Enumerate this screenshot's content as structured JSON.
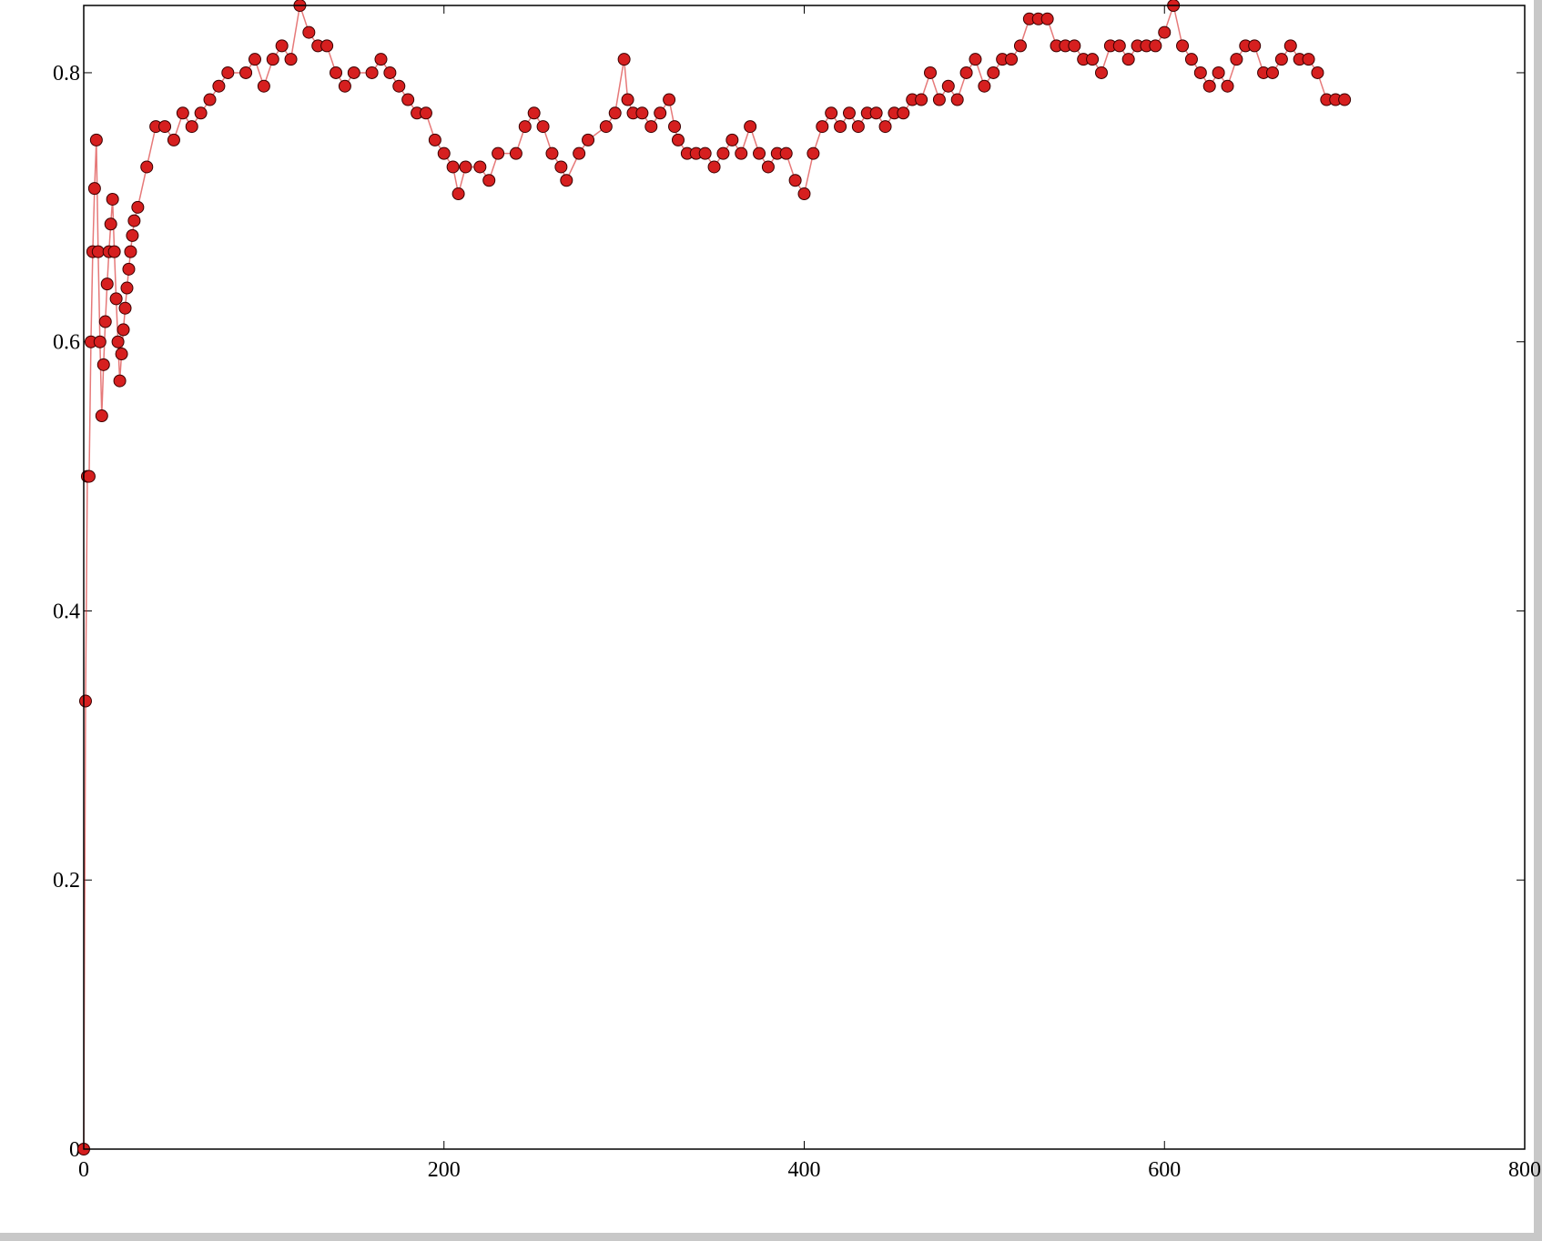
{
  "chart_data": {
    "type": "line",
    "x": [
      0,
      1,
      2,
      3,
      4,
      5,
      6,
      7,
      8,
      9,
      10,
      11,
      12,
      13,
      14,
      15,
      16,
      17,
      18,
      19,
      20,
      21,
      22,
      23,
      24,
      25,
      26,
      27,
      28,
      30,
      35,
      40,
      45,
      50,
      55,
      60,
      65,
      70,
      75,
      80,
      90,
      95,
      100,
      105,
      110,
      115,
      120,
      125,
      130,
      135,
      140,
      145,
      150,
      160,
      165,
      170,
      175,
      180,
      185,
      190,
      195,
      200,
      205,
      208,
      212,
      220,
      225,
      230,
      240,
      245,
      250,
      255,
      260,
      265,
      268,
      275,
      280,
      290,
      295,
      300,
      302,
      305,
      310,
      315,
      320,
      325,
      328,
      330,
      335,
      340,
      345,
      350,
      355,
      360,
      365,
      370,
      375,
      380,
      385,
      390,
      395,
      400,
      405,
      410,
      415,
      420,
      425,
      430,
      435,
      440,
      445,
      450,
      455,
      460,
      465,
      470,
      475,
      480,
      485,
      490,
      495,
      500,
      505,
      510,
      515,
      520,
      525,
      530,
      535,
      540,
      545,
      550,
      555,
      560,
      565,
      570,
      575,
      580,
      585,
      590,
      595,
      600,
      605,
      610,
      615,
      620,
      625,
      630,
      635,
      640,
      645,
      650,
      655,
      660,
      665,
      670,
      675,
      680,
      685,
      690,
      695,
      700
    ],
    "series": [
      {
        "color": "#d61f1f",
        "values": [
          0,
          0.333,
          0.5,
          0.5,
          0.6,
          0.667,
          0.714,
          0.75,
          0.667,
          0.6,
          0.545,
          0.583,
          0.615,
          0.643,
          0.667,
          0.6875,
          0.706,
          0.667,
          0.632,
          0.6,
          0.571,
          0.591,
          0.609,
          0.625,
          0.64,
          0.654,
          0.667,
          0.679,
          0.69,
          0.7,
          0.73,
          0.76,
          0.76,
          0.75,
          0.77,
          0.76,
          0.77,
          0.78,
          0.79,
          0.8,
          0.8,
          0.81,
          0.79,
          0.81,
          0.82,
          0.81,
          0.85,
          0.83,
          0.82,
          0.82,
          0.8,
          0.79,
          0.8,
          0.8,
          0.81,
          0.8,
          0.79,
          0.78,
          0.77,
          0.77,
          0.75,
          0.74,
          0.73,
          0.71,
          0.73,
          0.73,
          0.72,
          0.74,
          0.74,
          0.76,
          0.77,
          0.76,
          0.74,
          0.73,
          0.72,
          0.74,
          0.75,
          0.76,
          0.77,
          0.81,
          0.78,
          0.77,
          0.77,
          0.76,
          0.77,
          0.78,
          0.76,
          0.75,
          0.74,
          0.74,
          0.74,
          0.73,
          0.74,
          0.75,
          0.74,
          0.76,
          0.74,
          0.73,
          0.74,
          0.74,
          0.72,
          0.71,
          0.74,
          0.76,
          0.77,
          0.76,
          0.77,
          0.76,
          0.77,
          0.77,
          0.76,
          0.77,
          0.77,
          0.78,
          0.78,
          0.8,
          0.78,
          0.79,
          0.78,
          0.8,
          0.81,
          0.79,
          0.8,
          0.81,
          0.81,
          0.82,
          0.84,
          0.84,
          0.84,
          0.82,
          0.82,
          0.82,
          0.81,
          0.81,
          0.8,
          0.82,
          0.82,
          0.81,
          0.82,
          0.82,
          0.82,
          0.83,
          0.85,
          0.82,
          0.81,
          0.8,
          0.79,
          0.8,
          0.79,
          0.81,
          0.82,
          0.82,
          0.8,
          0.8,
          0.81,
          0.82,
          0.81,
          0.81,
          0.8,
          0.78,
          0.78,
          0.78
        ]
      }
    ],
    "xlim": [
      0,
      800
    ],
    "xticks": [
      0,
      200,
      400,
      600,
      800
    ],
    "ylim": [
      0,
      0.85
    ],
    "yticks": [
      0,
      0.2,
      0.4,
      0.6,
      0.8
    ]
  }
}
